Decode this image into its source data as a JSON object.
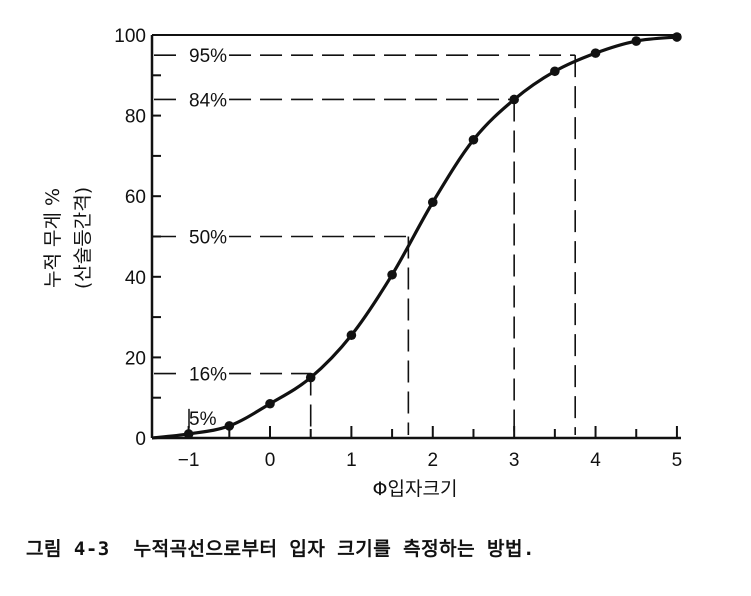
{
  "chart_data": {
    "type": "line",
    "xlabel": "Φ입자크기",
    "ylabel_line1": "누적 무게 %",
    "ylabel_line2": "(산술등간격)",
    "xlim": [
      -1.45,
      5.05
    ],
    "ylim": [
      0,
      100
    ],
    "x_ticks": [
      -1,
      0,
      1,
      2,
      3,
      4,
      5
    ],
    "x_ticks_minor": [
      -1,
      -0.5,
      0,
      0.5,
      1,
      1.5,
      2,
      2.5,
      3,
      3.5,
      4,
      4.5,
      5
    ],
    "y_ticks": [
      0,
      20,
      40,
      60,
      80,
      100
    ],
    "y_ticks_minor": [
      0,
      10,
      20,
      30,
      40,
      50,
      60,
      70,
      80,
      90,
      100
    ],
    "grid": false,
    "series": [
      {
        "points": [
          {
            "x": -1.0,
            "y": 1
          },
          {
            "x": -0.5,
            "y": 3
          },
          {
            "x": 0.0,
            "y": 8.5
          },
          {
            "x": 0.5,
            "y": 15
          },
          {
            "x": 1.0,
            "y": 25.5
          },
          {
            "x": 1.5,
            "y": 40.5
          },
          {
            "x": 2.0,
            "y": 58.5
          },
          {
            "x": 2.5,
            "y": 74
          },
          {
            "x": 3.0,
            "y": 84
          },
          {
            "x": 3.5,
            "y": 91
          },
          {
            "x": 4.0,
            "y": 95.5
          },
          {
            "x": 4.5,
            "y": 98.5
          },
          {
            "x": 5.0,
            "y": 99.5
          }
        ]
      }
    ],
    "annotations": [
      {
        "label": "5%",
        "y": 5,
        "x": -1.0
      },
      {
        "label": "16%",
        "y": 16,
        "x": 0.5
      },
      {
        "label": "50%",
        "y": 50,
        "x": 1.7
      },
      {
        "label": "84%",
        "y": 84,
        "x": 3.0
      },
      {
        "label": "95%",
        "y": 95,
        "x": 3.75
      }
    ]
  },
  "caption": "그림 4-3  누적곡선으로부터 입자 크기를 측정하는 방법."
}
